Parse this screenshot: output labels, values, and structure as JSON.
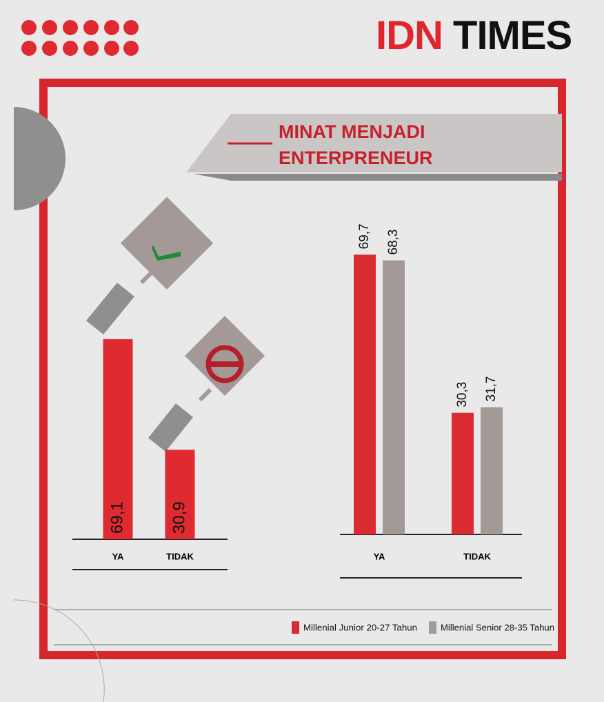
{
  "header": {
    "brand_red": "IDN",
    "brand_black": "TIMES",
    "title": "MINAT MENJADI ENTERPRENEUR"
  },
  "chart_data": [
    {
      "type": "bar",
      "categories": [
        "YA",
        "TIDAK"
      ],
      "values": [
        69.1,
        30.9
      ],
      "value_labels": [
        "69,1",
        "30,9"
      ],
      "color": "#de2a30"
    },
    {
      "type": "grouped_bar",
      "categories": [
        "YA",
        "TIDAK"
      ],
      "legend": "bottom-right",
      "series": [
        {
          "name": "Millenial Junior 20-27 Tahun",
          "color": "#d92b30",
          "values": [
            69.7,
            30.3
          ],
          "value_labels": [
            "69,7",
            "30,3"
          ]
        },
        {
          "name": "Millenial Senior 28-35 Tahun",
          "color": "#a39a98",
          "values": [
            68.3,
            31.7
          ],
          "value_labels": [
            "68,3",
            "31,7"
          ]
        }
      ]
    }
  ]
}
